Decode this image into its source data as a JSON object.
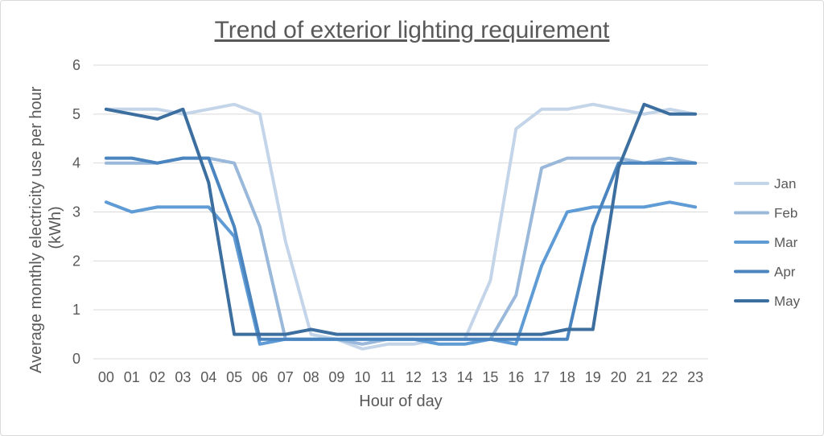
{
  "chart_data": {
    "type": "line",
    "title": "Trend of exterior lighting requirement",
    "xlabel": "Hour of day",
    "ylabel": "Average monthly electricity use per hour (kWh)",
    "ylabel_lines": [
      "Average monthly electricity use per hour",
      "(kWh)"
    ],
    "ylim": [
      0,
      6
    ],
    "yticks": [
      "0",
      "1",
      "2",
      "3",
      "4",
      "5",
      "6"
    ],
    "grid": true,
    "legend_position": "right",
    "categories": [
      "00",
      "01",
      "02",
      "03",
      "04",
      "05",
      "06",
      "07",
      "08",
      "09",
      "10",
      "11",
      "12",
      "13",
      "14",
      "15",
      "16",
      "17",
      "18",
      "19",
      "20",
      "21",
      "22",
      "23"
    ],
    "series": [
      {
        "name": "Jan",
        "color": "#c5d5e9",
        "values": [
          5.1,
          5.1,
          5.1,
          5.0,
          5.1,
          5.2,
          5.0,
          2.4,
          0.5,
          0.4,
          0.2,
          0.3,
          0.3,
          0.4,
          0.4,
          1.6,
          4.7,
          5.1,
          5.1,
          5.2,
          5.1,
          5.0,
          5.1,
          5.0
        ]
      },
      {
        "name": "Feb",
        "color": "#9ab8da",
        "values": [
          4.0,
          4.0,
          4.0,
          4.1,
          4.1,
          4.0,
          2.7,
          0.4,
          0.4,
          0.4,
          0.3,
          0.4,
          0.4,
          0.4,
          0.4,
          0.4,
          1.3,
          3.9,
          4.1,
          4.1,
          4.1,
          4.0,
          4.1,
          4.0
        ]
      },
      {
        "name": "Mar",
        "color": "#5f9bd5",
        "values": [
          3.2,
          3.0,
          3.1,
          3.1,
          3.1,
          2.5,
          0.3,
          0.4,
          0.4,
          0.4,
          0.4,
          0.4,
          0.4,
          0.3,
          0.3,
          0.4,
          0.3,
          1.9,
          3.0,
          3.1,
          3.1,
          3.1,
          3.2,
          3.1
        ]
      },
      {
        "name": "Apr",
        "color": "#4a85bf",
        "values": [
          4.1,
          4.1,
          4.0,
          4.1,
          4.1,
          2.7,
          0.4,
          0.4,
          0.4,
          0.4,
          0.4,
          0.4,
          0.4,
          0.4,
          0.4,
          0.4,
          0.4,
          0.4,
          0.4,
          2.7,
          4.0,
          4.0,
          4.0,
          4.0
        ]
      },
      {
        "name": "May",
        "color": "#3c6f9f",
        "values": [
          5.1,
          5.0,
          4.9,
          5.1,
          3.6,
          0.5,
          0.5,
          0.5,
          0.6,
          0.5,
          0.5,
          0.5,
          0.5,
          0.5,
          0.5,
          0.5,
          0.5,
          0.5,
          0.6,
          0.6,
          3.9,
          5.2,
          5.0,
          5.0
        ]
      }
    ]
  }
}
